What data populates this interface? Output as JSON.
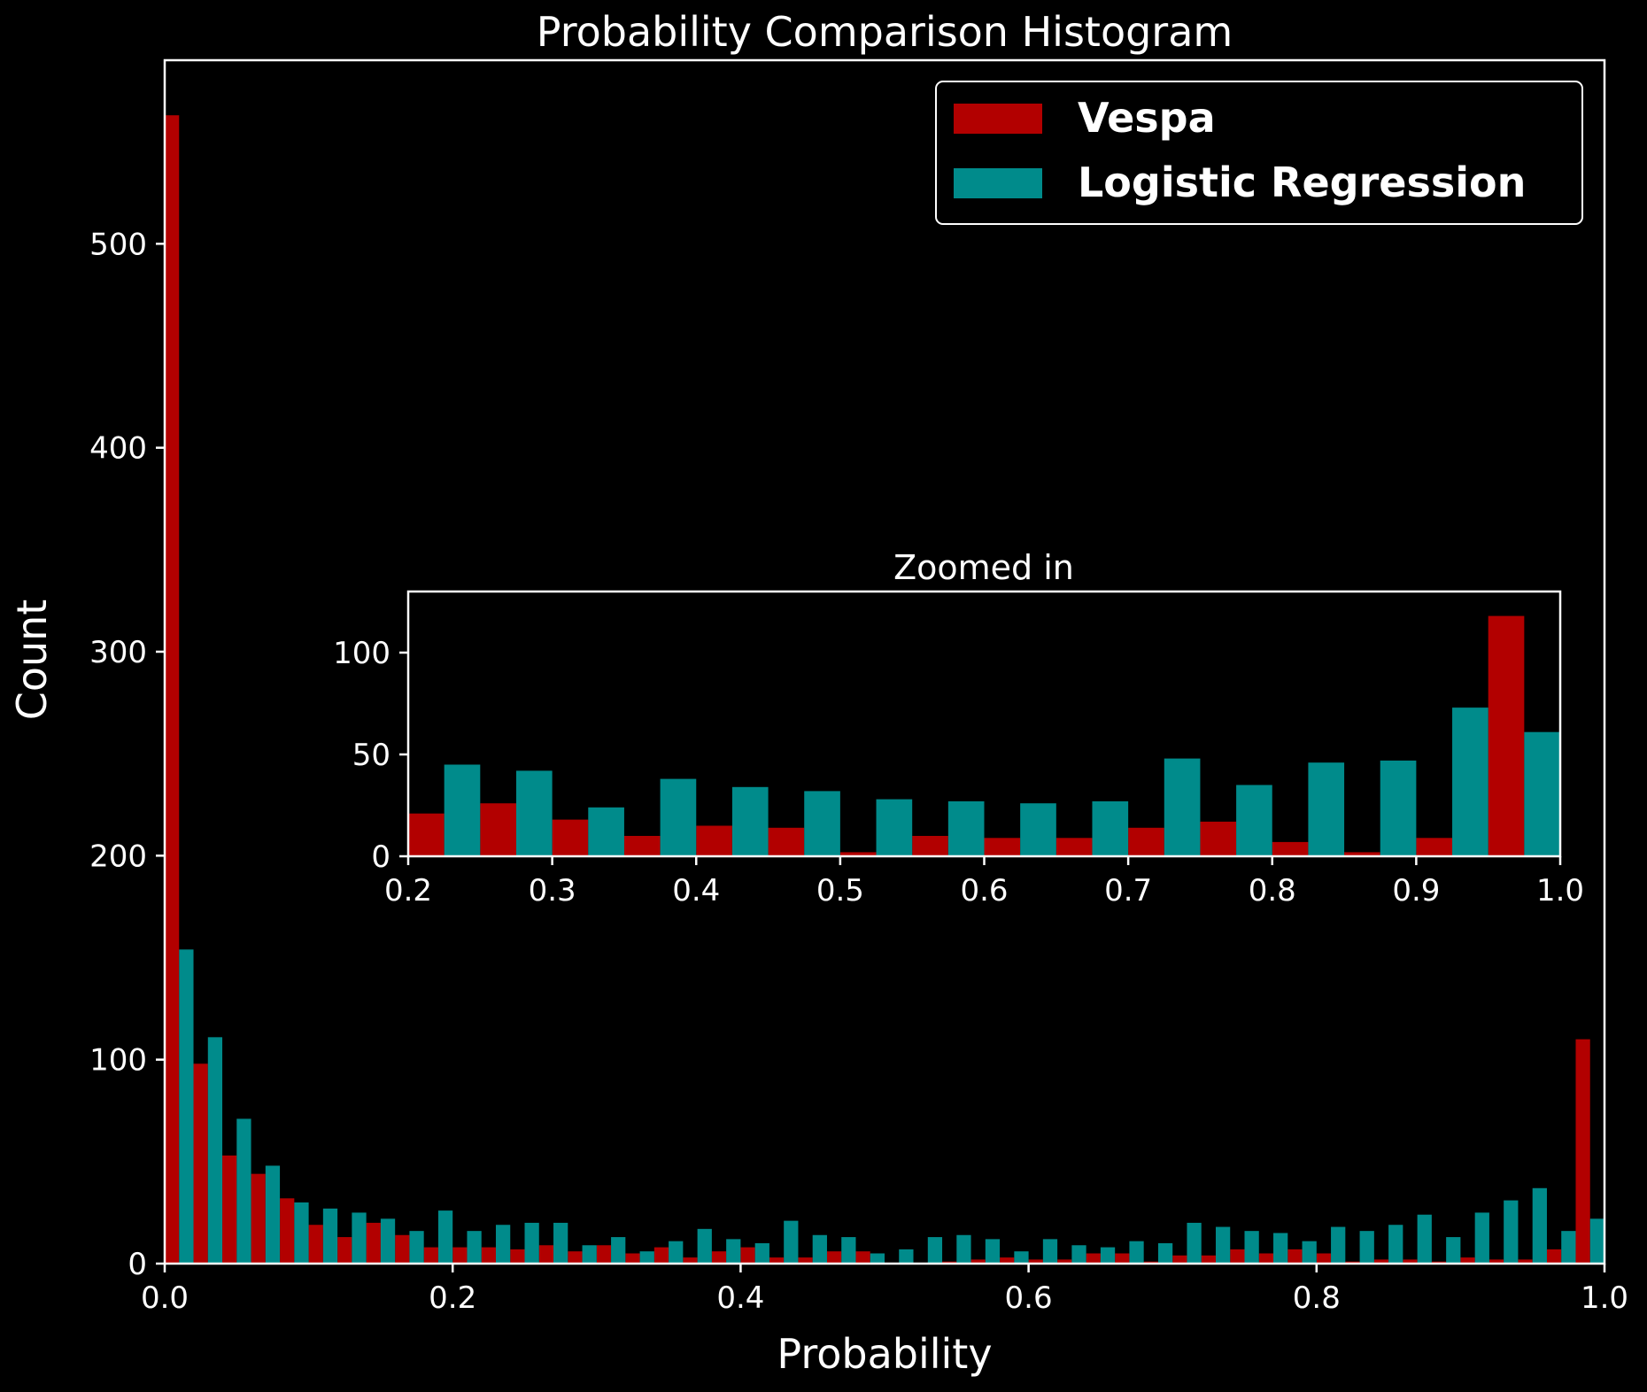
{
  "chart_data": [
    {
      "type": "bar",
      "title": "Probability Comparison Histogram",
      "xlabel": "Probability",
      "ylabel": "Count",
      "xlim": [
        0.0,
        1.0
      ],
      "ylim": [
        0,
        590
      ],
      "x_ticks": [
        0.0,
        0.2,
        0.4,
        0.6,
        0.8,
        1.0
      ],
      "x_tick_labels": [
        "0.0",
        "0.2",
        "0.4",
        "0.6",
        "0.8",
        "1.0"
      ],
      "y_ticks": [
        0,
        100,
        200,
        300,
        400,
        500
      ],
      "y_tick_labels": [
        "0",
        "100",
        "200",
        "300",
        "400",
        "500"
      ],
      "grid": false,
      "legend_position": "top-right",
      "bin_width": 0.02,
      "bin_starts": [
        0.0,
        0.02,
        0.04,
        0.06,
        0.08,
        0.1,
        0.12,
        0.14,
        0.16,
        0.18,
        0.2,
        0.22,
        0.24,
        0.26,
        0.28,
        0.3,
        0.32,
        0.34,
        0.36,
        0.38,
        0.4,
        0.42,
        0.44,
        0.46,
        0.48,
        0.5,
        0.52,
        0.54,
        0.56,
        0.58,
        0.6,
        0.62,
        0.64,
        0.66,
        0.68,
        0.7,
        0.72,
        0.74,
        0.76,
        0.78,
        0.8,
        0.82,
        0.84,
        0.86,
        0.88,
        0.9,
        0.92,
        0.94,
        0.96,
        0.98
      ],
      "series": [
        {
          "name": "Vespa",
          "color": "#b20000",
          "values": [
            563,
            98,
            53,
            44,
            32,
            19,
            13,
            20,
            14,
            8,
            8,
            8,
            7,
            9,
            6,
            9,
            5,
            8,
            3,
            6,
            8,
            3,
            3,
            6,
            6,
            0,
            0,
            1,
            2,
            3,
            2,
            2,
            5,
            5,
            1,
            4,
            4,
            7,
            5,
            7,
            5,
            1,
            2,
            2,
            1,
            3,
            2,
            2,
            7,
            110
          ]
        },
        {
          "name": "Logistic Regression",
          "color": "#008b8b",
          "values": [
            154,
            111,
            71,
            48,
            30,
            27,
            25,
            22,
            16,
            26,
            16,
            19,
            20,
            20,
            9,
            13,
            6,
            11,
            17,
            12,
            10,
            21,
            14,
            13,
            5,
            7,
            13,
            14,
            12,
            6,
            12,
            9,
            8,
            11,
            10,
            20,
            18,
            16,
            15,
            11,
            18,
            16,
            19,
            24,
            13,
            25,
            31,
            37,
            16,
            22
          ]
        }
      ]
    },
    {
      "type": "bar",
      "title": "Zoomed in",
      "xlabel": "",
      "ylabel": "",
      "xlim": [
        0.2,
        1.0
      ],
      "ylim": [
        0,
        130
      ],
      "x_ticks": [
        0.2,
        0.3,
        0.4,
        0.5,
        0.6,
        0.7,
        0.8,
        0.9,
        1.0
      ],
      "x_tick_labels": [
        "0.2",
        "0.3",
        "0.4",
        "0.5",
        "0.6",
        "0.7",
        "0.8",
        "0.9",
        "1.0"
      ],
      "y_ticks": [
        0,
        50,
        100
      ],
      "y_tick_labels": [
        "0",
        "50",
        "100"
      ],
      "grid": false,
      "bin_width": 0.05,
      "bin_starts": [
        0.2,
        0.25,
        0.3,
        0.35,
        0.4,
        0.45,
        0.5,
        0.55,
        0.6,
        0.65,
        0.7,
        0.75,
        0.8,
        0.85,
        0.9,
        0.95
      ],
      "series": [
        {
          "name": "Vespa",
          "color": "#b20000",
          "values": [
            21,
            26,
            18,
            10,
            15,
            14,
            2,
            10,
            9,
            9,
            14,
            17,
            7,
            2,
            9,
            118
          ]
        },
        {
          "name": "Logistic Regression",
          "color": "#008b8b",
          "values": [
            45,
            42,
            24,
            38,
            34,
            32,
            28,
            27,
            26,
            27,
            48,
            35,
            46,
            47,
            73,
            61
          ]
        }
      ]
    }
  ]
}
